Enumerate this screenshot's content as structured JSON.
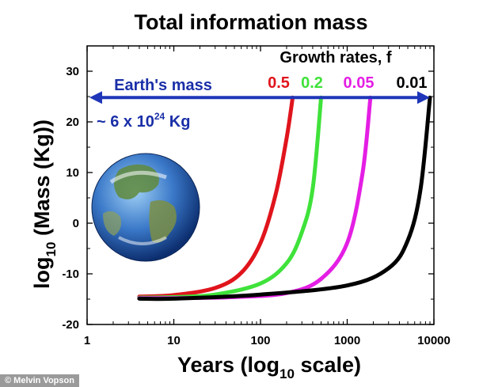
{
  "chart_data": {
    "type": "line",
    "title": "Total information mass",
    "ylabel": {
      "main": "log",
      "sub": "10",
      "rest": " (Mass (Kg))"
    },
    "xlabel": {
      "main": "Years (log",
      "sub": "10",
      "rest": " scale)"
    },
    "x_scale": "log",
    "xlim": [
      1,
      10000
    ],
    "ylim": [
      -20,
      35
    ],
    "x_ticks": [
      1,
      10,
      100,
      1000,
      10000
    ],
    "x_tick_labels": [
      "1",
      "10",
      "100",
      "1000",
      "10000"
    ],
    "y_ticks": [
      -20,
      -10,
      0,
      10,
      20,
      30
    ],
    "y_tick_labels": [
      "-20",
      "-10",
      "0",
      "10",
      "20",
      "30"
    ],
    "legend_title": "Growth rates, f",
    "earth_mass": {
      "label": "Earth's mass",
      "value_prefix": "~ 6 x 10",
      "value_exp": "24",
      "value_unit": " Kg",
      "log10_kg": 24.8,
      "arrow_color": "#1f36b8"
    },
    "series": [
      {
        "name": "0.5",
        "color": "#e0141c",
        "x": [
          4,
          10,
          30,
          60,
          100,
          150,
          200,
          235
        ],
        "y": [
          -14.5,
          -14.2,
          -12.8,
          -9.8,
          -3.9,
          5.8,
          16.8,
          24.8
        ]
      },
      {
        "name": "0.2",
        "color": "#3fe23a",
        "x": [
          4,
          10,
          30,
          100,
          200,
          300,
          400,
          500
        ],
        "y": [
          -14.7,
          -14.6,
          -14.1,
          -11.9,
          -7.9,
          -1.8,
          6.8,
          24.8
        ]
      },
      {
        "name": "0.05",
        "color": "#e41ee4",
        "x": [
          4,
          10,
          50,
          200,
          500,
          1000,
          1500,
          1850
        ],
        "y": [
          -14.8,
          -14.8,
          -14.6,
          -13.8,
          -11.0,
          -3.9,
          9.8,
          24.8
        ]
      },
      {
        "name": "0.01",
        "color": "#000000",
        "x": [
          4,
          10,
          100,
          1000,
          3000,
          5000,
          7000,
          9000
        ],
        "y": [
          -14.9,
          -14.9,
          -14.1,
          -12.3,
          -8.9,
          -3.4,
          6.6,
          24.8
        ]
      }
    ]
  },
  "credit": "© Melvin Vopson"
}
